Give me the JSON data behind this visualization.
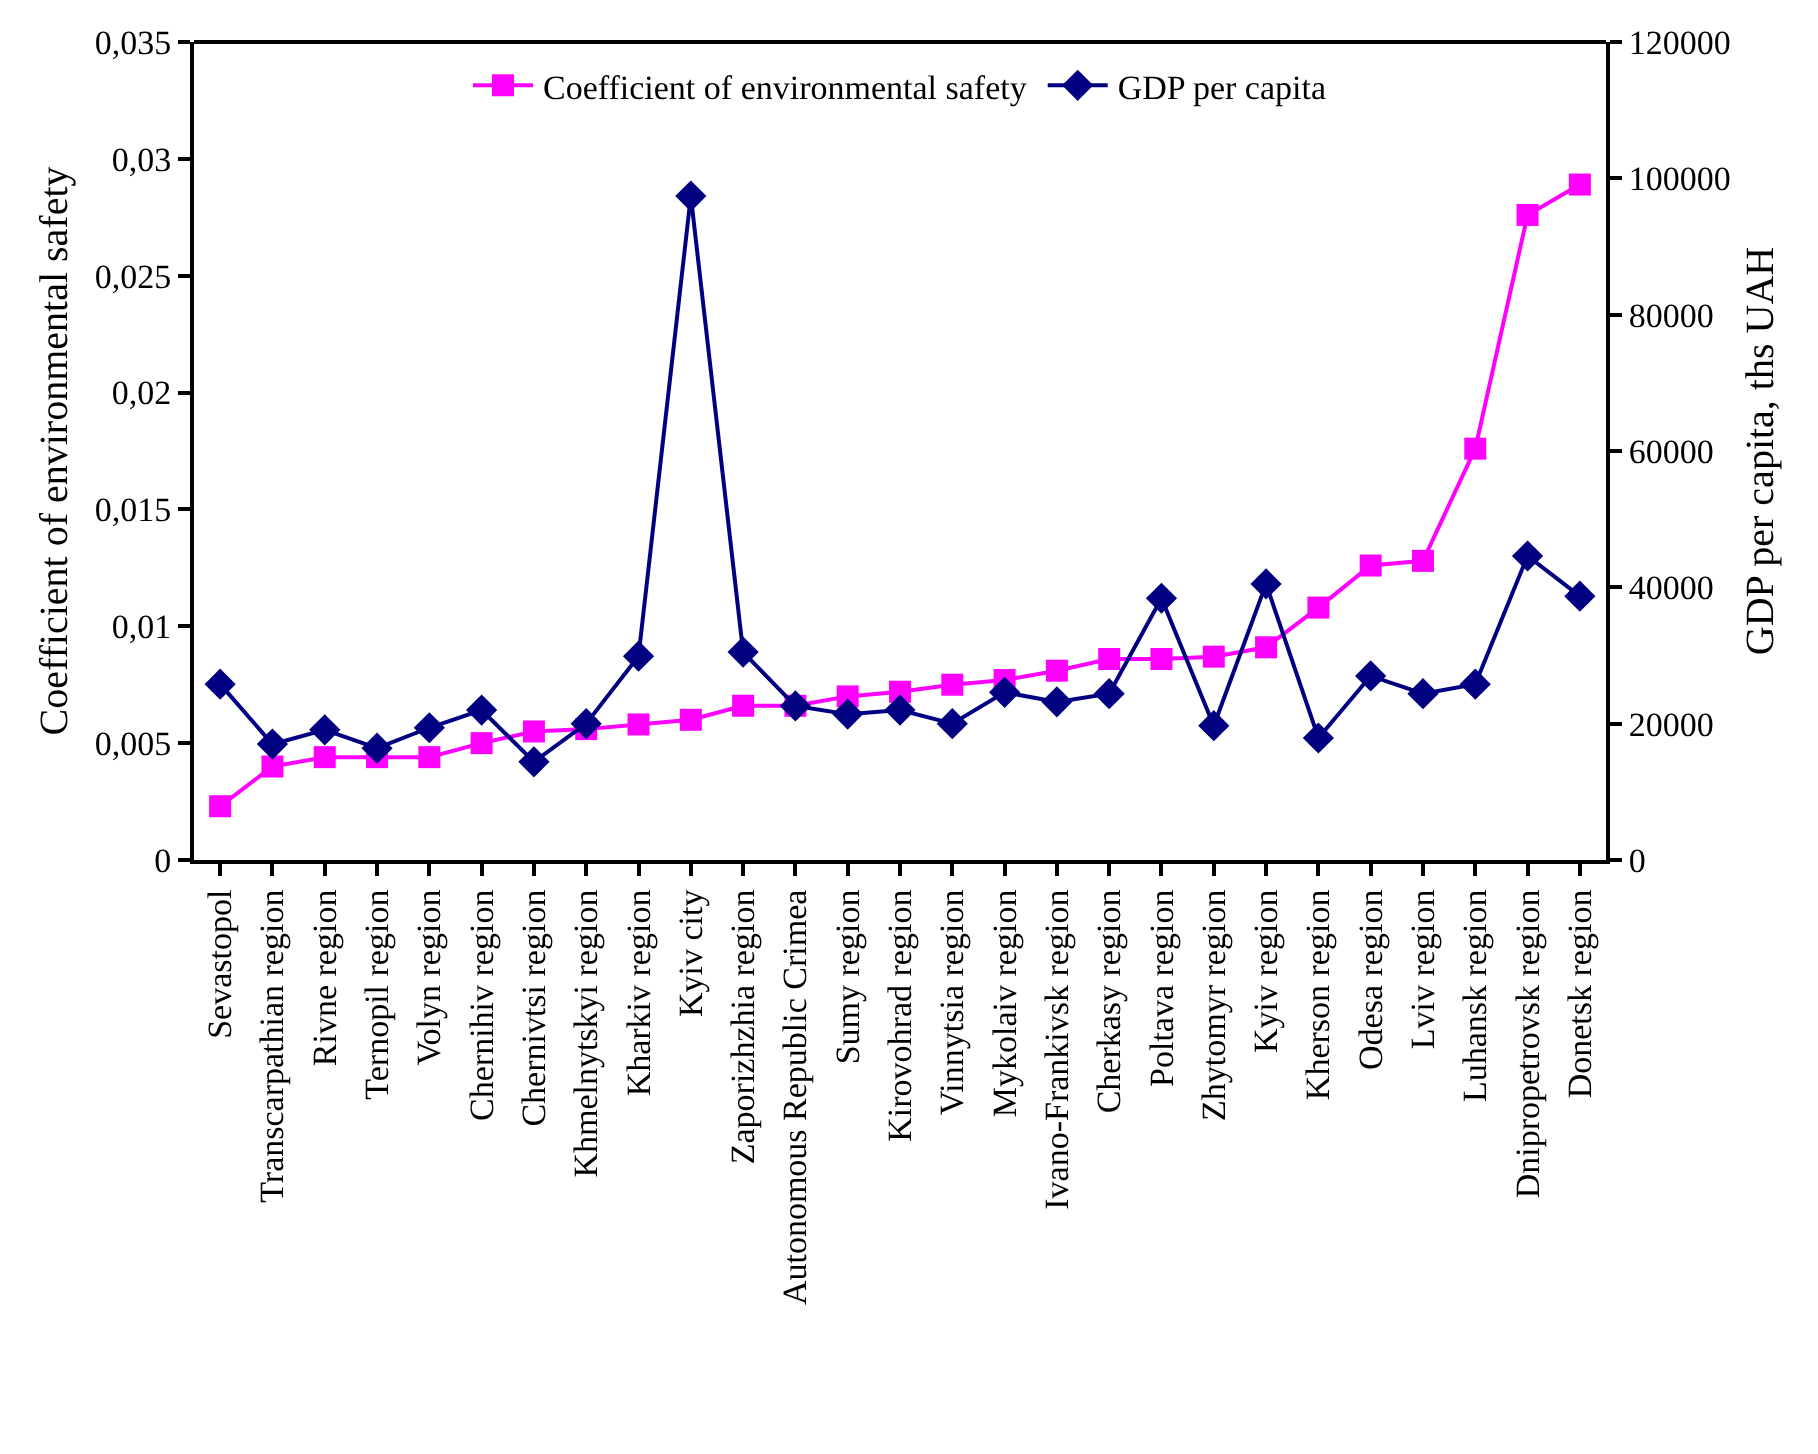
{
  "chart_data": {
    "type": "line",
    "ylabel": "Coefficient of environmental safety",
    "y2label": "GDP per capita, ths UAH",
    "categories": [
      "Sevastopol",
      "Transcarpathian region",
      "Rivne region",
      "Ternopil region",
      "Volyn region",
      "Chernihiv region",
      "Chernivtsi region",
      "Khmelnytskyi region",
      "Kharkiv region",
      "Kyiv city",
      "Zaporizhzhia region",
      "Autonomous Republic Crimea",
      "Sumy region",
      "Kirovohrad region",
      "Vinnytsia region",
      "Mykolaiv region",
      "Ivano-Frankivsk region",
      "Cherkasy region",
      "Poltava region",
      "Zhytomyr region",
      "Kyiv region",
      "Kherson region",
      "Odesa region",
      "Lviv region",
      "Luhansk region",
      "Dnipropetrovsk region",
      "Donetsk region"
    ],
    "series": [
      {
        "name": "Coefficient of environmental safety",
        "color": "#ff00ff",
        "marker": "square",
        "values": [
          0.0023,
          0.004,
          0.0044,
          0.0044,
          0.0044,
          0.005,
          0.0055,
          0.0056,
          0.0058,
          0.006,
          0.0066,
          0.0066,
          0.007,
          0.0072,
          0.0075,
          0.0077,
          0.0081,
          0.0086,
          0.0086,
          0.0087,
          0.0091,
          0.0108,
          0.0126,
          0.0128,
          0.0176,
          0.0276,
          0.0289
        ]
      },
      {
        "name": "GDP per capita",
        "color": "#000080",
        "marker": "diamond",
        "axis": "y2",
        "values": [
          25800,
          17000,
          19100,
          16400,
          19400,
          22000,
          14400,
          20000,
          29900,
          97400,
          30500,
          22600,
          21400,
          22000,
          20000,
          24600,
          23200,
          24400,
          38400,
          19700,
          40500,
          17900,
          27000,
          24400,
          25800,
          44600,
          38700
        ]
      }
    ],
    "ylim": [
      0,
      0.035
    ],
    "yticks": [
      {
        "value": 0,
        "label": "0"
      },
      {
        "value": 0.005,
        "label": "0,005"
      },
      {
        "value": 0.01,
        "label": "0,01"
      },
      {
        "value": 0.015,
        "label": "0,015"
      },
      {
        "value": 0.02,
        "label": "0,02"
      },
      {
        "value": 0.025,
        "label": "0,025"
      },
      {
        "value": 0.03,
        "label": "0,03"
      },
      {
        "value": 0.035,
        "label": "0,035"
      }
    ],
    "y2lim": [
      0,
      120000
    ],
    "y2ticks": [
      0,
      20000,
      40000,
      60000,
      80000,
      100000,
      120000
    ],
    "legend": "top",
    "line_style": "solid"
  }
}
